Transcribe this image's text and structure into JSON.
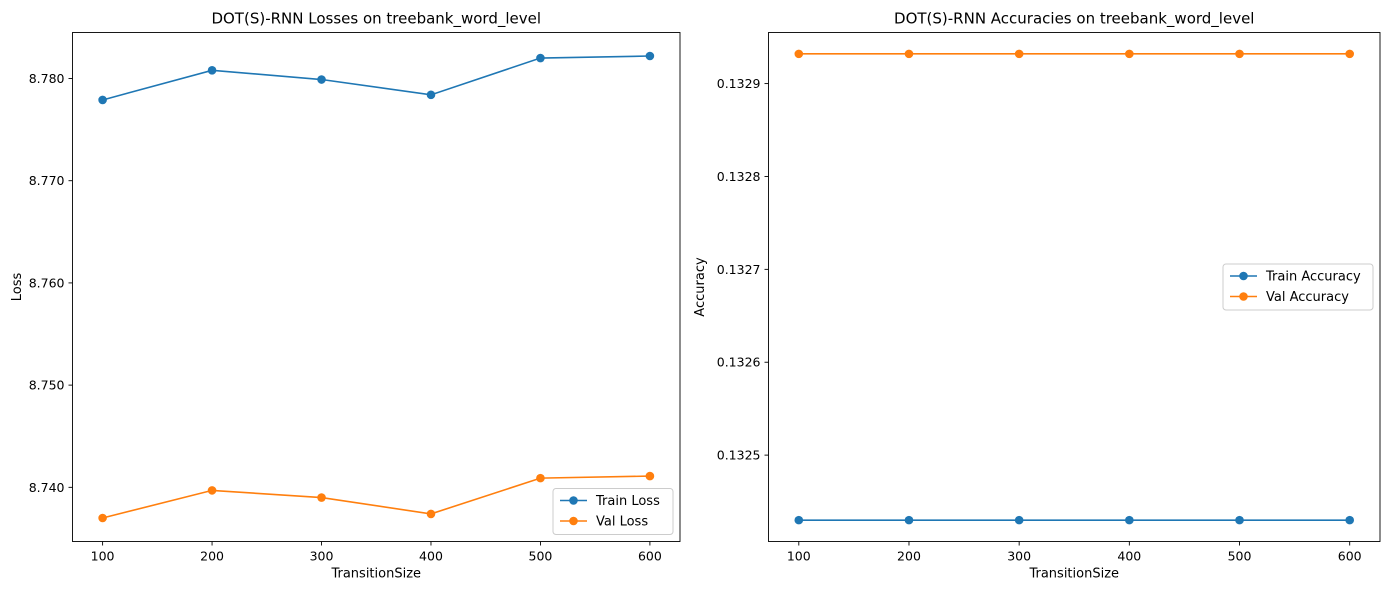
{
  "chart_data": [
    {
      "type": "line",
      "title": "DOT(S)-RNN Losses on treebank_word_level",
      "xlabel": "TransitionSize",
      "ylabel": "Loss",
      "x": [
        100,
        200,
        300,
        400,
        500,
        600
      ],
      "xticks": [
        100,
        200,
        300,
        400,
        500,
        600
      ],
      "xlim": [
        72.5,
        627.5
      ],
      "yticks": [
        8.74,
        8.75,
        8.76,
        8.77,
        8.78
      ],
      "ytick_labels": [
        "8.740",
        "8.750",
        "8.760",
        "8.770",
        "8.780"
      ],
      "ylim": [
        8.7347,
        8.7845
      ],
      "grid": false,
      "legend_position": "lower-right",
      "series": [
        {
          "name": "Train Loss",
          "color": "#1f77b4",
          "values": [
            8.7779,
            8.7808,
            8.7799,
            8.7784,
            8.782,
            8.7822
          ]
        },
        {
          "name": "Val Loss",
          "color": "#ff7f0e",
          "values": [
            8.737,
            8.7397,
            8.739,
            8.7374,
            8.7409,
            8.7411
          ]
        }
      ]
    },
    {
      "type": "line",
      "title": "DOT(S)-RNN Accuracies on treebank_word_level",
      "xlabel": "TransitionSize",
      "ylabel": "Accuracy",
      "x": [
        100,
        200,
        300,
        400,
        500,
        600
      ],
      "xticks": [
        100,
        200,
        300,
        400,
        500,
        600
      ],
      "xlim": [
        72.5,
        627.5
      ],
      "yticks": [
        0.1325,
        0.1326,
        0.1327,
        0.1328,
        0.1329
      ],
      "ytick_labels": [
        "0.1325",
        "0.1326",
        "0.1327",
        "0.1328",
        "0.1329"
      ],
      "ylim": [
        0.132407,
        0.132955
      ],
      "grid": false,
      "legend_position": "center-right",
      "series": [
        {
          "name": "Train Accuracy",
          "color": "#1f77b4",
          "values": [
            0.13243,
            0.13243,
            0.13243,
            0.13243,
            0.13243,
            0.13243
          ]
        },
        {
          "name": "Val Accuracy",
          "color": "#ff7f0e",
          "values": [
            0.132932,
            0.132932,
            0.132932,
            0.132932,
            0.132932,
            0.132932
          ]
        }
      ]
    }
  ]
}
